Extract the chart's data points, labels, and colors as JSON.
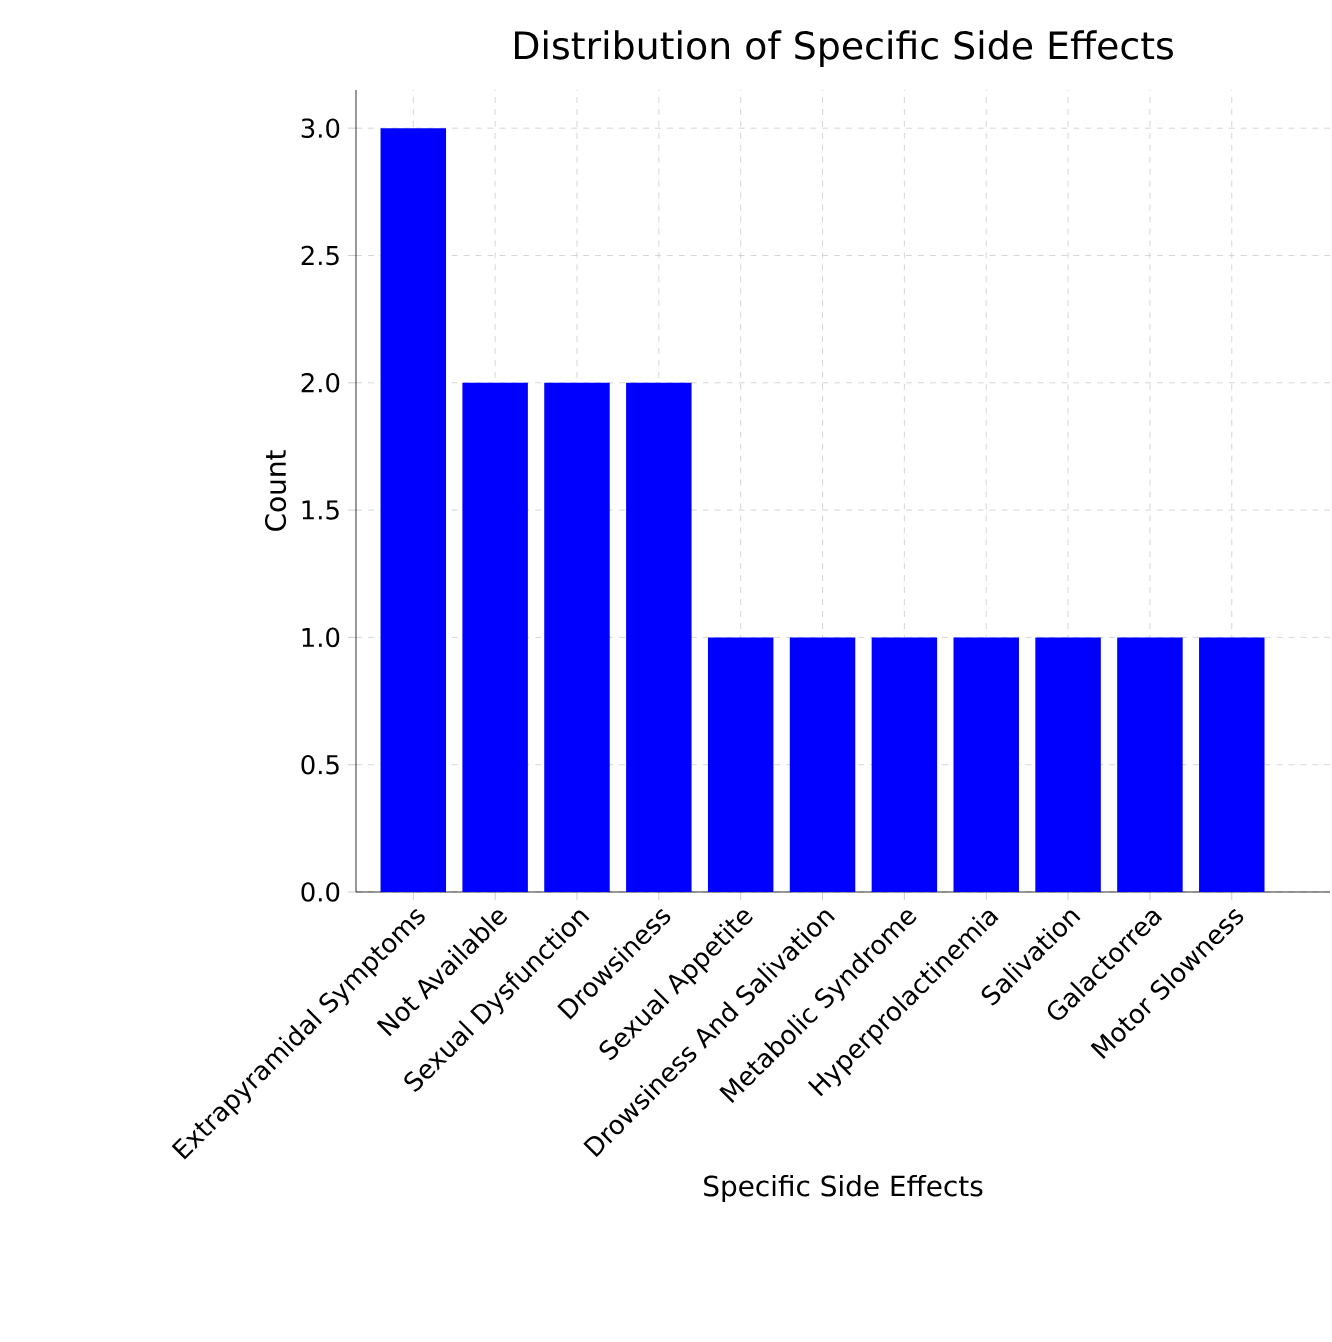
{
  "chart_data": {
    "type": "bar",
    "title": "Distribution of Specific Side Effects",
    "xlabel": "Specific Side Effects",
    "ylabel": "Count",
    "categories": [
      "Extrapyramidal Symptoms",
      "Not Available",
      "Sexual Dysfunction",
      "Drowsiness",
      "Sexual Appetite",
      "Drowsiness And Salivation",
      "Metabolic Syndrome",
      "Hyperprolactinemia",
      "Salivation",
      "Galactorrea",
      "Motor Slowness"
    ],
    "values": [
      3,
      2,
      2,
      2,
      1,
      1,
      1,
      1,
      1,
      1,
      1
    ],
    "color": "#0000ff",
    "ylim": [
      0,
      3.15
    ],
    "yticks": [
      {
        "value": 0,
        "label": "0.0"
      },
      {
        "value": 0.5,
        "label": "0.5"
      },
      {
        "value": 1,
        "label": "1.0"
      },
      {
        "value": 1.5,
        "label": "1.5"
      },
      {
        "value": 2,
        "label": "2.0"
      },
      {
        "value": 2.5,
        "label": "2.5"
      },
      {
        "value": 3,
        "label": "3.0"
      }
    ],
    "grid": true
  }
}
